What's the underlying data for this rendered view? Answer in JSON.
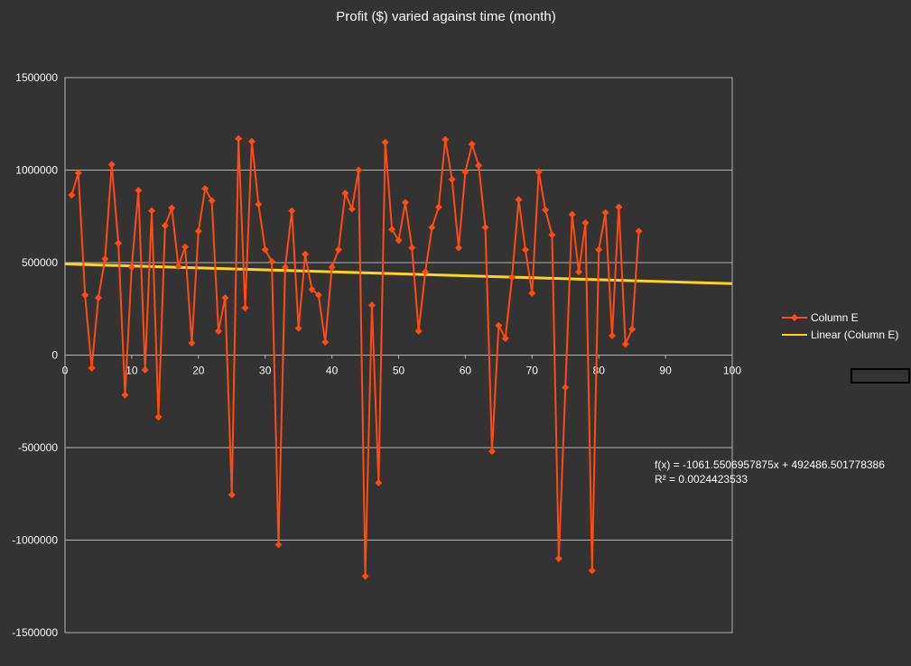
{
  "chart_data": {
    "type": "scatter",
    "title": "Profit ($) varied against time (month)",
    "xlabel": "",
    "ylabel": "",
    "xlim": [
      0,
      100
    ],
    "ylim": [
      -1500000,
      1500000
    ],
    "x_ticks": [
      "0",
      "10",
      "20",
      "30",
      "40",
      "50",
      "60",
      "70",
      "80",
      "90",
      "100"
    ],
    "y_ticks": [
      "1500000",
      "1000000",
      "500000",
      "0",
      "-500000",
      "-1000000",
      "-1500000"
    ],
    "grid": "horizontal",
    "legend_position": "right",
    "series": [
      {
        "name": "Column E",
        "color": "#ff4a12",
        "marker": "diamond",
        "x": [
          1,
          2,
          3,
          4,
          5,
          6,
          7,
          8,
          9,
          10,
          11,
          12,
          13,
          14,
          15,
          16,
          17,
          18,
          19,
          20,
          21,
          22,
          23,
          24,
          25,
          26,
          27,
          28,
          29,
          30,
          31,
          32,
          33,
          34,
          35,
          36,
          37,
          38,
          39,
          40,
          41,
          42,
          43,
          44,
          45,
          46,
          47,
          48,
          49,
          50,
          51,
          52,
          53,
          54,
          55,
          56,
          57,
          58,
          59,
          60,
          61,
          62,
          63,
          64,
          65,
          66,
          67,
          68,
          69,
          70,
          71,
          72,
          73,
          74,
          75,
          76,
          77,
          78,
          79,
          80,
          81,
          82,
          83,
          84,
          85,
          86
        ],
        "y": [
          865000,
          985000,
          325000,
          -70000,
          310000,
          520000,
          1030000,
          605000,
          -215000,
          475000,
          890000,
          -80000,
          780000,
          -335000,
          700000,
          795000,
          480000,
          585000,
          65000,
          670000,
          900000,
          835000,
          130000,
          310000,
          -755000,
          1170000,
          255000,
          1155000,
          815000,
          570000,
          505000,
          -1025000,
          475000,
          780000,
          145000,
          545000,
          355000,
          325000,
          70000,
          475000,
          570000,
          875000,
          790000,
          1000000,
          -1195000,
          270000,
          -690000,
          1150000,
          680000,
          620000,
          825000,
          580000,
          130000,
          450000,
          690000,
          800000,
          1165000,
          950000,
          580000,
          990000,
          1140000,
          1025000,
          690000,
          -520000,
          160000,
          90000,
          420000,
          840000,
          570000,
          335000,
          990000,
          785000,
          650000,
          -1100000,
          -175000,
          760000,
          450000,
          715000,
          -1165000,
          570000,
          770000,
          105000,
          800000,
          60000,
          140000,
          670000
        ]
      },
      {
        "name": "Linear (Column E)",
        "color": "#ffd320",
        "type": "trendline",
        "slope": -1061.5506957875,
        "intercept": 492486.501778386
      }
    ],
    "annotations": [
      "f(x) = -1061.5506957875x + 492486.501778386",
      "R² = 0.0024423533"
    ]
  }
}
